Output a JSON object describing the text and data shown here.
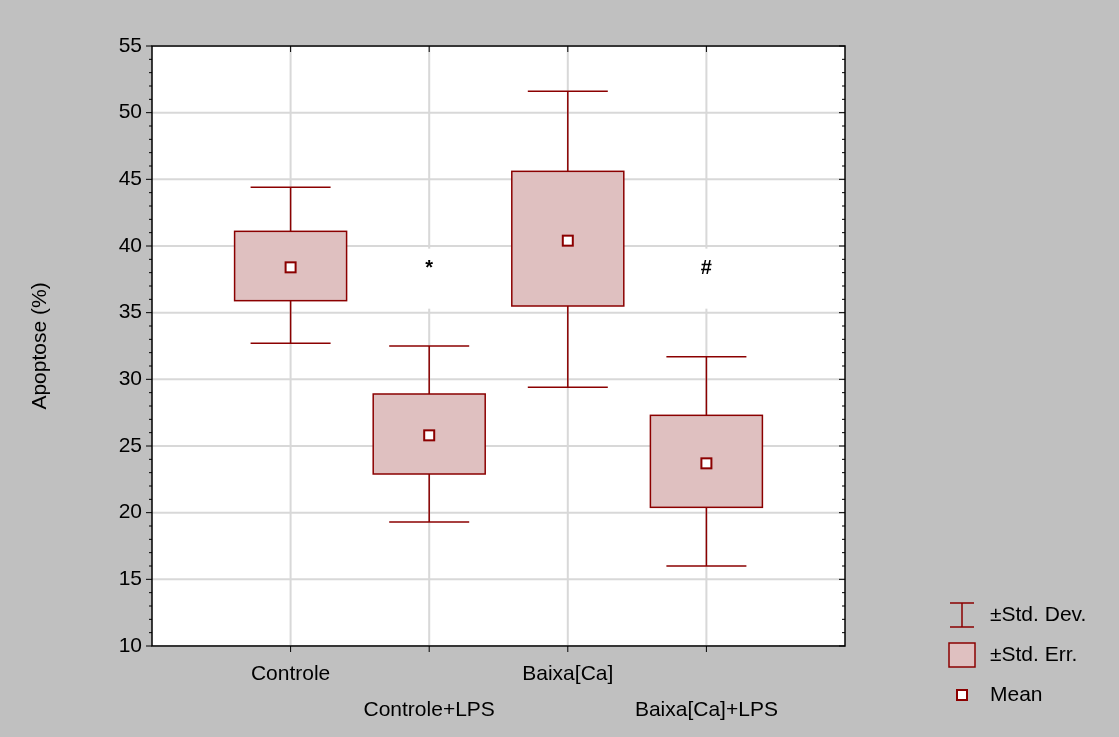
{
  "chart_data": {
    "type": "box",
    "ylabel": "Apoptose (%)",
    "categories": [
      "Controle",
      "Controle+LPS",
      "Baixa[Ca]",
      "Baixa[Ca]+LPS"
    ],
    "boxes": [
      {
        "low": 32.7,
        "q1": 35.9,
        "q3": 41.1,
        "high": 44.4,
        "mean": 38.4
      },
      {
        "low": 19.3,
        "q1": 22.9,
        "q3": 28.9,
        "high": 32.5,
        "mean": 25.8
      },
      {
        "low": 29.4,
        "q1": 35.5,
        "q3": 45.6,
        "high": 51.6,
        "mean": 40.4
      },
      {
        "low": 16.0,
        "q1": 20.4,
        "q3": 27.3,
        "high": 31.7,
        "mean": 23.7
      }
    ],
    "color": "#8b0000",
    "ylim": [
      10,
      55
    ],
    "yticks": [
      10,
      15,
      20,
      25,
      30,
      35,
      40,
      45,
      50,
      55
    ],
    "grid": true,
    "annotations": [
      "*",
      "#",
      "±Std. Dev.",
      "±Std. Err.",
      "Mean"
    ]
  }
}
